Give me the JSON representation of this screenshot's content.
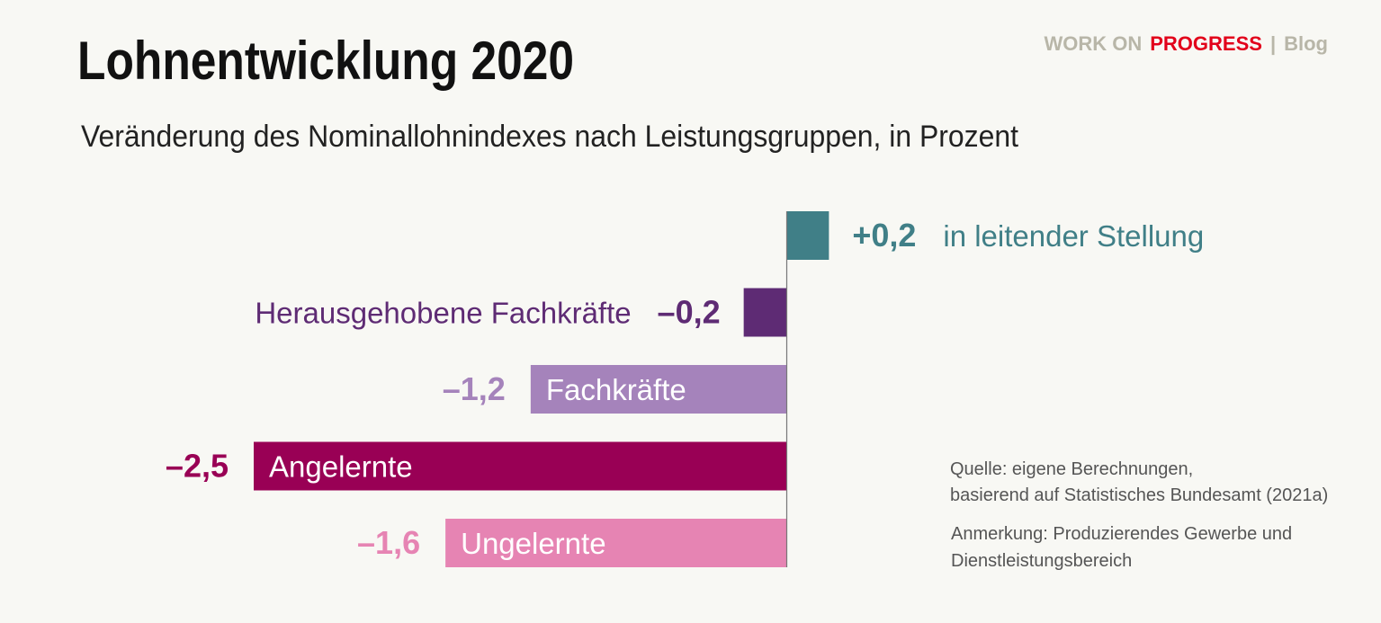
{
  "header": {
    "title": "Lohnentwicklung 2020",
    "subtitle": "Veränderung des Nominallohnindexes nach Leistungsgruppen, in Prozent",
    "brand_part1": "WORK ON",
    "brand_part2": "PROGRESS",
    "brand_sep": "|",
    "brand_blog": "Blog",
    "brand_colors": {
      "grey": "#b8b6a8",
      "red": "#e2001a"
    }
  },
  "chart_data": {
    "type": "bar",
    "orientation": "horizontal",
    "title": "Lohnentwicklung 2020",
    "subtitle": "Veränderung des Nominallohnindexes nach Leistungsgruppen, in Prozent",
    "xlabel": "",
    "ylabel": "",
    "xlim": [
      -2.5,
      0.2
    ],
    "grid": false,
    "categories": [
      "in leitender Stellung",
      "Herausgehobene Fachkräfte",
      "Fachkräfte",
      "Angelernte",
      "Ungelernte"
    ],
    "values": [
      0.2,
      -0.2,
      -1.2,
      -2.5,
      -1.6
    ],
    "value_labels": [
      "+0,2",
      "–0,2",
      "–1,2",
      "–2,5",
      "–1,6"
    ],
    "colors": [
      "#407f87",
      "#5e2b74",
      "#a583bb",
      "#990055",
      "#e684b3"
    ]
  },
  "notes": {
    "source_line1": "Quelle: eigene Berechnungen,",
    "source_line2": "basierend auf Statistisches Bundesamt (2021a)",
    "remark_line1": "Anmerkung: Produzierendes Gewerbe und",
    "remark_line2": "Dienstleistungsbereich"
  }
}
